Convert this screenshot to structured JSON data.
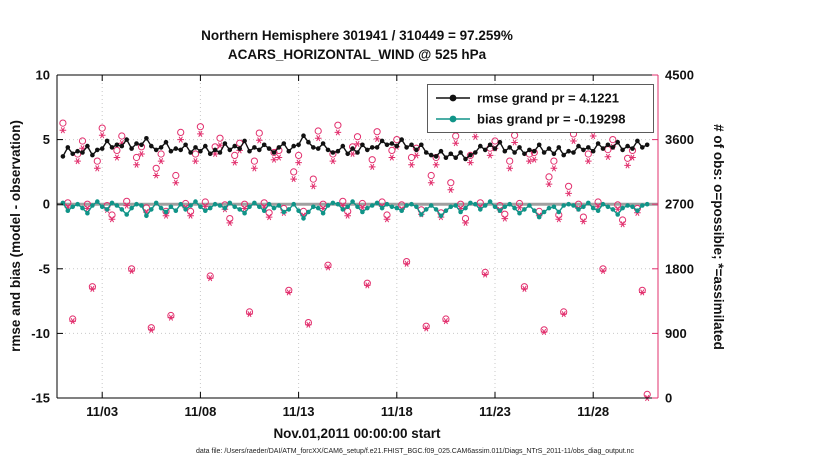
{
  "title": {
    "line1": "Northern Hemisphere 301941 / 310449 = 97.259%",
    "line2": "ACARS_HORIZONTAL_WIND @ 525 hPa"
  },
  "legend": {
    "rmse_label": "rmse grand pr = 4.1221",
    "bias_label": "bias grand pr = -0.19298"
  },
  "footer": {
    "text": "data file: /Users/raeder/DAI/ATM_forcXX/CAM6_setup/f.e21.FHIST_BGC.f09_025.CAM6assim.011/Diags_NTrS_2011-11/obs_diag_output.nc"
  },
  "colors": {
    "rmse": "#111111",
    "bias": "#109488",
    "obs": "#e2306e",
    "legend_text": "#1a1aff",
    "zero_line": "#a0a0a0",
    "axis": "#000000"
  },
  "chart_data": {
    "type": "line+scatter",
    "title": "Northern Hemisphere 301941 / 310449 = 97.259% | ACARS_HORIZONTAL_WIND @ 525 hPa",
    "xlabel": "Nov.01,2011 00:00:00 start",
    "ylabel_left": "rmse and bias (model - observation)",
    "ylabel_right": "# of obs: o=possible; *=assimilated",
    "axes": {
      "xlim": [
        0.7,
        31.3
      ],
      "ylim_left": [
        -15,
        10
      ],
      "ylim_right": [
        0,
        4500
      ],
      "grid": true,
      "xticks": {
        "values": [
          3,
          8,
          13,
          18,
          23,
          28
        ],
        "labels": [
          "11/03",
          "11/08",
          "11/13",
          "11/18",
          "11/23",
          "11/28"
        ]
      },
      "yticks_left": {
        "values": [
          10,
          5,
          0,
          -5,
          -10,
          -15
        ],
        "labels": [
          "10",
          "5",
          "0",
          "-5",
          "-10",
          "-15"
        ]
      },
      "yticks_right": {
        "values": [
          4500,
          3600,
          2700,
          1800,
          900,
          0
        ],
        "labels": [
          "4500",
          "3600",
          "2700",
          "1800",
          "900",
          "0"
        ]
      }
    },
    "x": {
      "start": 1.0,
      "step": 0.25,
      "count": 120,
      "units": "day of Nov 2011, 4 obs times per day"
    },
    "series": [
      {
        "name": "rmse",
        "axis": "left",
        "grand_value": 4.1221,
        "values": [
          3.7,
          4.4,
          3.9,
          4.1,
          4.0,
          4.5,
          3.8,
          4.2,
          4.3,
          4.9,
          4.4,
          4.6,
          4.5,
          5.0,
          4.3,
          4.7,
          4.6,
          5.1,
          4.5,
          4.2,
          4.4,
          4.8,
          4.1,
          4.3,
          4.2,
          4.6,
          4.0,
          4.4,
          4.1,
          4.5,
          3.9,
          4.2,
          4.0,
          4.7,
          4.2,
          4.5,
          4.3,
          4.9,
          4.1,
          4.4,
          4.2,
          4.6,
          4.3,
          4.0,
          4.4,
          4.7,
          4.1,
          4.5,
          4.6,
          5.3,
          4.8,
          4.4,
          4.3,
          4.7,
          4.2,
          4.0,
          4.1,
          4.5,
          3.9,
          4.3,
          4.0,
          4.6,
          4.2,
          4.4,
          4.4,
          4.9,
          4.6,
          4.7,
          4.5,
          5.0,
          4.4,
          4.6,
          4.2,
          4.6,
          4.0,
          3.8,
          3.7,
          4.1,
          3.6,
          3.9,
          3.6,
          4.0,
          3.5,
          3.8,
          4.0,
          4.5,
          4.2,
          4.6,
          4.3,
          4.8,
          4.1,
          4.4,
          4.0,
          4.4,
          3.9,
          4.2,
          4.1,
          4.6,
          4.0,
          4.3,
          3.9,
          4.4,
          3.8,
          4.1,
          4.0,
          4.5,
          4.2,
          4.4,
          4.1,
          4.7,
          4.3,
          4.6,
          4.4,
          4.8,
          4.2,
          4.5,
          4.3,
          4.9,
          4.4,
          4.6
        ]
      },
      {
        "name": "bias",
        "axis": "left",
        "grand_value": -0.19298,
        "values": [
          0.1,
          -0.5,
          -0.2,
          0.0,
          -0.3,
          -0.7,
          -0.1,
          0.2,
          -0.2,
          -0.4,
          0.1,
          -0.1,
          -0.4,
          -0.8,
          -0.3,
          0.0,
          -0.1,
          -0.9,
          -0.4,
          0.1,
          -0.3,
          -0.6,
          -0.2,
          -0.5,
          0.0,
          -0.4,
          -0.1,
          0.2,
          -0.2,
          -0.5,
          -0.3,
          0.0,
          -0.1,
          -0.3,
          0.1,
          -0.2,
          -0.4,
          -0.7,
          -0.2,
          0.1,
          -0.2,
          -0.5,
          0.0,
          -0.3,
          -0.1,
          -0.6,
          -0.4,
          0.0,
          -0.5,
          -1.1,
          -0.6,
          -0.2,
          -0.3,
          -0.7,
          -0.1,
          0.1,
          0.0,
          -0.4,
          -0.2,
          0.2,
          -0.2,
          -0.6,
          -0.3,
          -0.1,
          0.1,
          -0.3,
          0.0,
          -0.2,
          -0.3,
          -0.5,
          -0.1,
          0.0,
          -0.2,
          -0.8,
          -0.4,
          -0.1,
          -0.4,
          -0.9,
          -0.5,
          -0.2,
          -0.1,
          -0.6,
          -0.3,
          0.1,
          0.0,
          -0.4,
          -0.1,
          0.2,
          -0.2,
          -0.5,
          -0.2,
          0.0,
          -0.3,
          -0.7,
          -0.4,
          -0.1,
          -0.5,
          -1.0,
          -0.6,
          -0.3,
          -0.2,
          -0.6,
          -0.1,
          0.0,
          -0.1,
          -0.4,
          -0.2,
          0.1,
          -0.3,
          -0.5,
          0.0,
          -0.2,
          -0.4,
          -0.8,
          -0.3,
          -0.1,
          -0.2,
          -0.5,
          -0.1,
          0.0
        ]
      },
      {
        "name": "possible_obs",
        "axis": "right",
        "marker": "o",
        "values": [
          3830,
          2720,
          1100,
          3400,
          3580,
          2700,
          1550,
          3300,
          3760,
          2680,
          2550,
          3450,
          3650,
          2740,
          1800,
          3350,
          3500,
          2650,
          980,
          3200,
          3400,
          2600,
          1150,
          3100,
          3700,
          2710,
          2600,
          3400,
          3780,
          2730,
          1700,
          3500,
          3620,
          2690,
          2500,
          3380,
          3550,
          2700,
          1200,
          3300,
          3690,
          2720,
          2580,
          3420,
          3450,
          2640,
          1500,
          3150,
          3380,
          2600,
          1050,
          3050,
          3720,
          2700,
          1850,
          3400,
          3800,
          2740,
          2600,
          3500,
          3640,
          2710,
          1600,
          3320,
          3710,
          2730,
          2550,
          3450,
          3600,
          2690,
          1900,
          3350,
          3480,
          2620,
          1000,
          3100,
          3350,
          2580,
          1100,
          3000,
          3650,
          2700,
          2500,
          3380,
          3740,
          2720,
          1750,
          3480,
          3580,
          2680,
          2560,
          3300,
          3660,
          2710,
          1550,
          3400,
          3420,
          2600,
          950,
          3080,
          3300,
          2550,
          1200,
          2950,
          3680,
          2700,
          2520,
          3400,
          3750,
          2730,
          1800,
          3460,
          3600,
          2690,
          2480,
          3340,
          3450,
          2640,
          1500,
          50
        ]
      },
      {
        "name": "assimilated_obs",
        "axis": "right",
        "marker": "*",
        "values": [
          3730,
          2660,
          1070,
          3300,
          3480,
          2640,
          1520,
          3200,
          3660,
          2620,
          2490,
          3350,
          3550,
          2680,
          1770,
          3250,
          3400,
          2590,
          950,
          3100,
          3300,
          2540,
          1120,
          3000,
          3600,
          2650,
          2540,
          3300,
          3680,
          2670,
          1670,
          3400,
          3520,
          2630,
          2440,
          3280,
          3450,
          2640,
          1170,
          3200,
          3590,
          2660,
          2520,
          3320,
          3350,
          2580,
          1470,
          3050,
          3280,
          2540,
          1020,
          2950,
          3620,
          2640,
          1820,
          3300,
          3700,
          2680,
          2540,
          3400,
          3540,
          2650,
          1570,
          3220,
          3610,
          2670,
          2490,
          3350,
          3500,
          2630,
          1870,
          3250,
          3380,
          2560,
          970,
          3000,
          3250,
          2520,
          1070,
          2900,
          3550,
          2640,
          2440,
          3280,
          3640,
          2660,
          1720,
          3380,
          3480,
          2620,
          2500,
          3200,
          3560,
          2650,
          1520,
          3300,
          3320,
          2540,
          920,
          2980,
          3200,
          2490,
          1170,
          2850,
          3580,
          2640,
          2460,
          3300,
          3650,
          2670,
          1770,
          3360,
          3500,
          2630,
          2420,
          3240,
          3350,
          2580,
          1470,
          0
        ]
      }
    ]
  }
}
